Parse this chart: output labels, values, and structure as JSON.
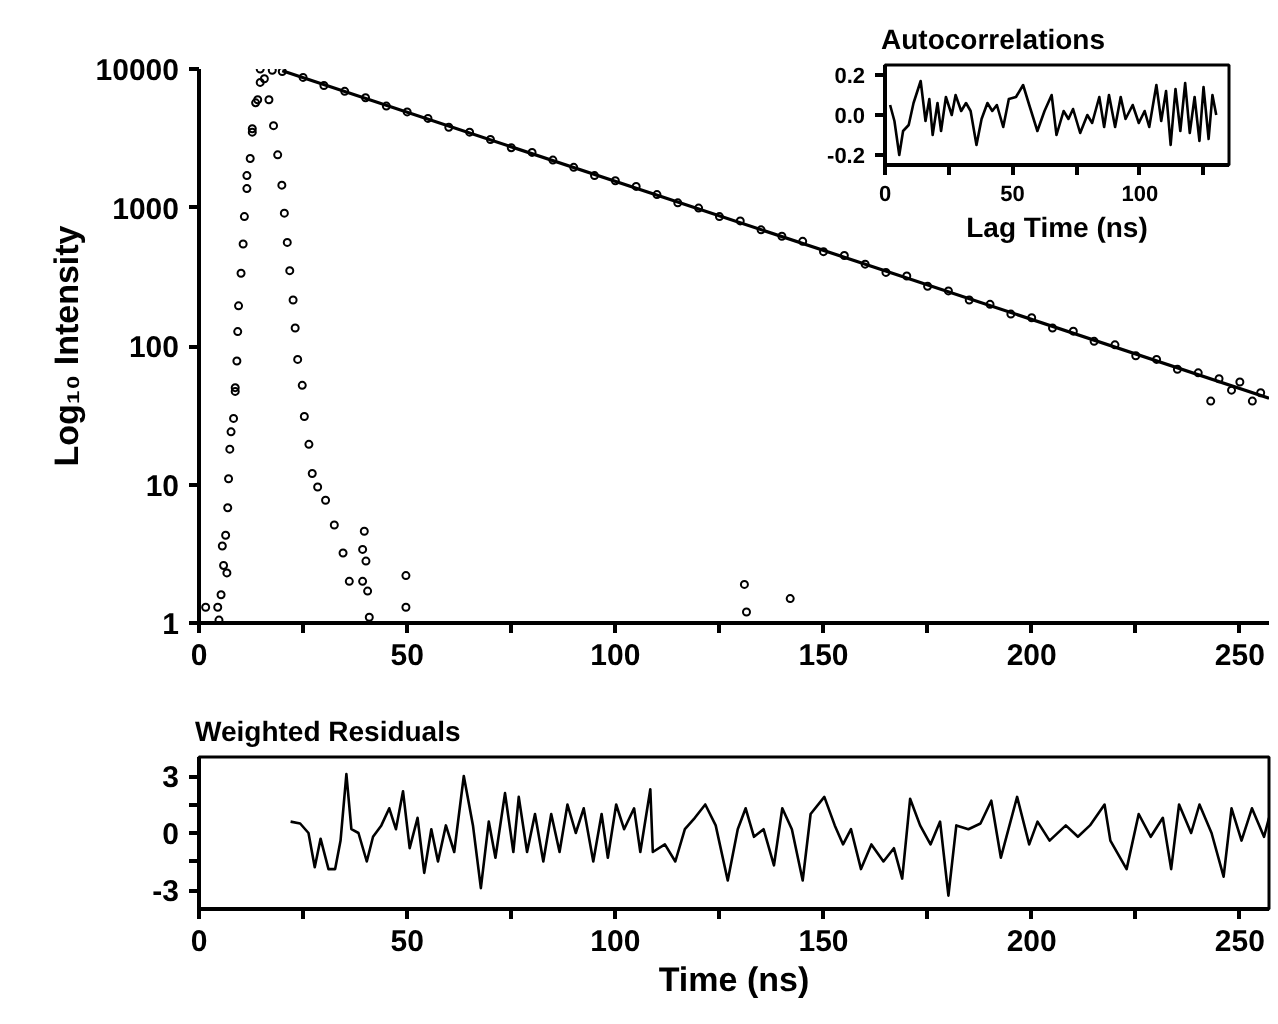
{
  "chart_data": [
    {
      "type": "scatter",
      "ylabel": "Log₁₀ Intensity",
      "log": true,
      "grid": false,
      "xlim": [
        0,
        257
      ],
      "ylim": [
        1,
        10000
      ],
      "xticks": [
        0,
        {
          "value": 25,
          "label": null
        },
        50,
        {
          "value": 75,
          "label": null
        },
        100,
        {
          "value": 125,
          "label": null
        },
        150,
        {
          "value": 175,
          "label": null
        },
        200,
        {
          "value": 225,
          "label": null
        },
        250
      ],
      "yticks": [
        1,
        10,
        100,
        1000,
        10000
      ],
      "series": [
        {
          "type": "scatter",
          "marker": "circle",
          "color": "#000000",
          "x": [
            1.6,
            4.5,
            5.6,
            6.7,
            7.7,
            8.7,
            11.5,
            12.8,
            14.1,
            14.7,
            15.7,
            17.6,
            20,
            25,
            30,
            35,
            40,
            45,
            50,
            55,
            60,
            65,
            70,
            75,
            80,
            85,
            90,
            95,
            100,
            105,
            110,
            115,
            120,
            125,
            130,
            135,
            140,
            145,
            150,
            155,
            160,
            165,
            170,
            175,
            180,
            185,
            190,
            195,
            200,
            205,
            210,
            215,
            220,
            225,
            230,
            235,
            240,
            243,
            245,
            248,
            250,
            253,
            255
          ],
          "values": [
            1.3,
            1.3,
            3.6,
            2.3,
            24,
            50,
            1700,
            3500,
            6000,
            8000,
            8500,
            9800,
            9600,
            8700,
            7600,
            6900,
            6200,
            5400,
            4900,
            4400,
            3800,
            3500,
            3100,
            2700,
            2500,
            2200,
            1950,
            1700,
            1560,
            1420,
            1240,
            1080,
            990,
            860,
            800,
            690,
            620,
            570,
            480,
            450,
            390,
            340,
            320,
            270,
            250,
            215,
            200,
            170,
            160,
            135,
            128,
            108,
            102,
            85,
            80,
            68,
            64,
            40,
            58,
            48,
            55,
            40,
            46
          ]
        },
        {
          "type": "scatter",
          "marker": "circle",
          "color": "#000000",
          "x": [
            4.8,
            5.3,
            5.9,
            6.4,
            6.9,
            7.1,
            7.4,
            8.3,
            8.7,
            9.1,
            9.3,
            9.5,
            10.1,
            10.6,
            10.9,
            11.5,
            12.3,
            12.8,
            13.6,
            14.7,
            16.8,
            17.9,
            18.9,
            19.9,
            20.5,
            21.2,
            21.8,
            22.6,
            23.1,
            23.7,
            24.8,
            25.3,
            26.4,
            27.2,
            28.5,
            30.4,
            32.5,
            34.6,
            36.1,
            39.3,
            39.3,
            39.7,
            40.1,
            40.5,
            40.9,
            49.7,
            49.7,
            131,
            131.5,
            142
          ],
          "values": [
            1.05,
            1.6,
            2.6,
            4.3,
            6.8,
            11,
            18,
            30,
            47,
            78,
            127,
            195,
            335,
            545,
            860,
            1370,
            2260,
            3700,
            5700,
            10000,
            6000,
            3900,
            2400,
            1450,
            910,
            560,
            350,
            215,
            135,
            80,
            52,
            31,
            19.5,
            12,
            9.6,
            7.7,
            5.1,
            3.2,
            2.0,
            3.4,
            2.0,
            4.6,
            2.8,
            1.7,
            1.1,
            2.2,
            1.3,
            1.9,
            1.2,
            1.5
          ]
        },
        {
          "type": "line",
          "color": "#000000",
          "x": [
            20,
            257
          ],
          "values": [
            9700,
            42
          ]
        }
      ]
    },
    {
      "type": "line",
      "title": "Autocorrelations",
      "xlabel": "Lag Time (ns)",
      "grid": false,
      "xlim": [
        0,
        135
      ],
      "ylim": [
        -0.25,
        0.25
      ],
      "xticks": [
        0,
        {
          "value": 25,
          "label": null
        },
        50,
        {
          "value": 75,
          "label": null
        },
        100,
        {
          "value": 125,
          "label": null
        }
      ],
      "yticks": [
        -0.2,
        {
          "value": 0,
          "label": "0.0"
        },
        0.2
      ],
      "series": [
        {
          "color": "#000000",
          "x": [
            2,
            3.7,
            5.6,
            7.1,
            9.3,
            11.2,
            14,
            15.9,
            17.4,
            18.7,
            20.6,
            22,
            23.9,
            26.2,
            27.7,
            29.9,
            31.8,
            33.6,
            35.9,
            37.9,
            40.2,
            42.1,
            43.9,
            46.4,
            48.6,
            51.4,
            54.2,
            56.6,
            59.8,
            62.6,
            65.4,
            67.3,
            70.1,
            72,
            73.8,
            76.6,
            79.4,
            81.3,
            84.1,
            86,
            87.9,
            90.3,
            92.5,
            94.4,
            97.2,
            99.6,
            101.9,
            103.7,
            106.5,
            108.4,
            110.3,
            112.1,
            114,
            115.9,
            117.8,
            119.6,
            121.5,
            123.4,
            125,
            127,
            128.5,
            130
          ],
          "values": [
            0.05,
            -0.03,
            -0.2,
            -0.08,
            -0.05,
            0.06,
            0.17,
            -0.03,
            0.08,
            -0.1,
            0.06,
            -0.08,
            0.09,
            0,
            0.1,
            0.02,
            0.06,
            0.02,
            -0.15,
            -0.02,
            0.06,
            0.02,
            0.05,
            -0.06,
            0.08,
            0.09,
            0.15,
            0.05,
            -0.08,
            0.02,
            0.1,
            -0.1,
            0.02,
            -0.02,
            0.03,
            -0.09,
            0,
            -0.04,
            0.09,
            -0.06,
            0.1,
            -0.06,
            0.09,
            -0.02,
            0.05,
            -0.04,
            0.02,
            -0.06,
            0.15,
            -0.03,
            0.12,
            -0.15,
            0.13,
            -0.08,
            0.16,
            -0.09,
            0.09,
            -0.13,
            0.14,
            -0.12,
            0.1,
            0
          ]
        }
      ]
    },
    {
      "type": "line",
      "title": "Weighted Residuals",
      "xlabel": "Time (ns)",
      "grid": false,
      "xlim": [
        0,
        257
      ],
      "ylim": [
        -4,
        4
      ],
      "xticks": [
        0,
        {
          "value": 25,
          "label": null
        },
        50,
        {
          "value": 75,
          "label": null
        },
        100,
        {
          "value": 125,
          "label": null
        },
        150,
        {
          "value": 175,
          "label": null
        },
        200,
        {
          "value": 225,
          "label": null
        },
        250
      ],
      "yticks": [
        -3,
        {
          "value": -1.5,
          "label": null
        },
        0,
        {
          "value": 1.5,
          "label": null
        },
        3
      ],
      "series": [
        {
          "color": "#000000",
          "x": [
            22,
            24.3,
            26.3,
            27.8,
            29.2,
            31.1,
            32.7,
            34,
            35.4,
            36.6,
            38.3,
            40.3,
            41.8,
            43.8,
            45.7,
            47.3,
            49,
            50.6,
            52.5,
            54.1,
            55.8,
            57.4,
            59.3,
            61.3,
            63.6,
            65.8,
            67.7,
            69.6,
            71.2,
            73.5,
            75.5,
            76.8,
            78.8,
            80.7,
            82.7,
            84.6,
            86.6,
            88.5,
            90.5,
            92.4,
            94.7,
            96.7,
            98.2,
            100.2,
            102.1,
            104.5,
            106,
            108.4,
            109,
            111.9,
            114.4,
            116.7,
            119.1,
            121.6,
            124.1,
            127,
            129.4,
            131.3,
            133.3,
            135.6,
            138.1,
            140.1,
            142.4,
            145,
            146.9,
            150.2,
            152.7,
            154.7,
            156.6,
            159,
            161.5,
            164.4,
            166.9,
            168.9,
            170.8,
            173.2,
            175.7,
            178,
            180,
            181.9,
            184.8,
            187.7,
            190.3,
            192.6,
            196.5,
            199.4,
            201.4,
            204.3,
            208.2,
            211.1,
            214,
            217.5,
            218.9,
            222.8,
            225.7,
            228.6,
            231.5,
            233.5,
            235.4,
            238.3,
            240.3,
            243.2,
            246.1,
            248,
            250.4,
            252.9,
            255.8,
            257
          ],
          "values": [
            0.6,
            0.5,
            0,
            -1.8,
            -0.3,
            -1.9,
            -1.9,
            -0.4,
            3.1,
            0.2,
            0,
            -1.5,
            -0.2,
            0.4,
            1.3,
            0.2,
            2.2,
            -0.8,
            0.8,
            -2.1,
            0.2,
            -1.5,
            0.4,
            -1.0,
            3.0,
            0.4,
            -2.9,
            0.6,
            -1.3,
            2.1,
            -1.0,
            1.9,
            -1.0,
            1.0,
            -1.5,
            1.0,
            -1.0,
            1.5,
            0,
            1.3,
            -1.5,
            1.0,
            -1.3,
            1.5,
            0.2,
            1.3,
            -1.0,
            2.3,
            -1.0,
            -0.6,
            -1.5,
            0.2,
            0.8,
            1.5,
            0.4,
            -2.5,
            0.2,
            1.3,
            -0.2,
            0.2,
            -1.7,
            1.3,
            0.2,
            -2.5,
            1.0,
            1.9,
            0.4,
            -0.6,
            0.2,
            -1.9,
            -0.6,
            -1.5,
            -0.8,
            -2.4,
            1.8,
            0.4,
            -0.6,
            0.6,
            -3.3,
            0.4,
            0.2,
            0.5,
            1.7,
            -1.3,
            1.9,
            -0.6,
            0.6,
            -0.4,
            0.4,
            -0.2,
            0.4,
            1.5,
            -0.4,
            -1.9,
            1.0,
            -0.2,
            0.8,
            -1.9,
            1.5,
            0,
            1.5,
            0,
            -2.3,
            1.3,
            -0.4,
            1.3,
            -0.2,
            0.8
          ]
        }
      ]
    }
  ]
}
